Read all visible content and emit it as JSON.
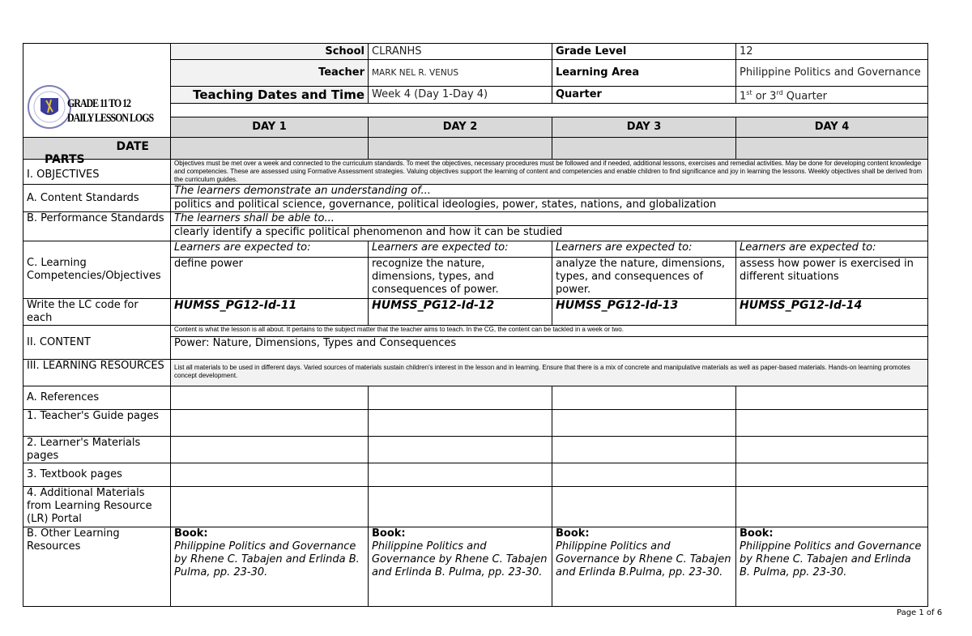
{
  "header": {
    "logo_title_line1": "GRADE 11 TO 12",
    "logo_title_line2": "DAILY LESSON LOGS",
    "school_label": "School",
    "school_value": "CLRANHS",
    "teacher_label": "Teacher",
    "teacher_value": "MARK NEL R. VENUS",
    "dates_label": "Teaching Dates and Time",
    "dates_value": "Week 4 (Day 1-Day 4)",
    "grade_label": "Grade Level",
    "grade_value": "12",
    "area_label": "Learning Area",
    "area_value": "Philippine Politics and Governance",
    "quarter_label": "Quarter",
    "quarter_value": {
      "a": "1",
      "a_sup": "st",
      "mid": " or 3",
      "b_sup": "rd",
      "end": " Quarter"
    }
  },
  "days": [
    "DAY 1",
    "DAY 2",
    "DAY 3",
    "DAY 4"
  ],
  "date_label": "DATE",
  "parts_label": "PARTS",
  "objectives": {
    "label": "I. OBJECTIVES",
    "note": "Objectives must be met over a week and connected to the curriculum standards. To meet the objectives, necessary procedures must be followed and if needed, additional lessons, exercises and remedial activities. May be done for developing content knowledge and competencies. These are assessed using Formative Assessment strategies. Valuing objectives support the learning of content and competencies and enable children to find significance and joy in learning the lessons. Weekly objectives shall be derived from the curriculum guides."
  },
  "content_standards": {
    "label": "A. Content Standards",
    "intro": "The learners demonstrate an understanding of...",
    "text": "politics and political science, governance, political ideologies, power, states, nations, and globalization"
  },
  "performance_standards": {
    "label": "B. Performance Standards",
    "intro": "The learners shall be able to...",
    "text": "clearly identify a specific political phenomenon and how it can be studied"
  },
  "competencies": {
    "label": "C. Learning Competencies/Objectives",
    "intro": "Learners are expected to:",
    "items": [
      "define power",
      "recognize the nature, dimensions, types, and consequences of power.",
      "analyze the nature, dimensions, types, and consequences of power.",
      "assess how power is exercised in different situations"
    ]
  },
  "lc_code": {
    "label": "Write the LC code for each",
    "codes": [
      "HUMSS_PG12-Id-11",
      "HUMSS_PG12-Id-12",
      "HUMSS_PG12-Id-13",
      "HUMSS_PG12-Id-14"
    ]
  },
  "content": {
    "label": "II. CONTENT",
    "note": "Content is what the lesson is all about. It pertains to the subject matter that the teacher aims to teach. In the CG, the content can be tackled in a week or two.",
    "text": "Power: Nature, Dimensions, Types and Consequences"
  },
  "resources": {
    "label": "III. LEARNING RESOURCES",
    "note": "List all materials to be used in different days. Varied sources of materials sustain children's interest in the lesson and in learning. Ensure that there is a mix of concrete and manipulative materials as well as paper-based materials. Hands-on learning promotes concept development.",
    "references": "A. References",
    "teachers_guide": "1. Teacher's Guide pages",
    "learners_materials": "2. Learner's Materials pages",
    "textbook": "3. Textbook pages",
    "additional": "4. Additional Materials from Learning Resource (LR) Portal",
    "other": "B. Other Learning Resources",
    "book_label": "Book:",
    "books": [
      "Philippine Politics and Governance by Rhene C. Tabajen and Erlinda B. Pulma, pp. 23-30.",
      "Philippine Politics and Governance by Rhene C. Tabajen and Erlinda B. Pulma, pp. 23-30.",
      "Philippine Politics and Governance by Rhene C. Tabajen and Erlinda B.Pulma, pp. 23-30.",
      "Philippine Politics and Governance by Rhene C. Tabajen and Erlinda B. Pulma, pp. 23-30."
    ]
  },
  "footer": {
    "page": "Page 1 of 6"
  }
}
